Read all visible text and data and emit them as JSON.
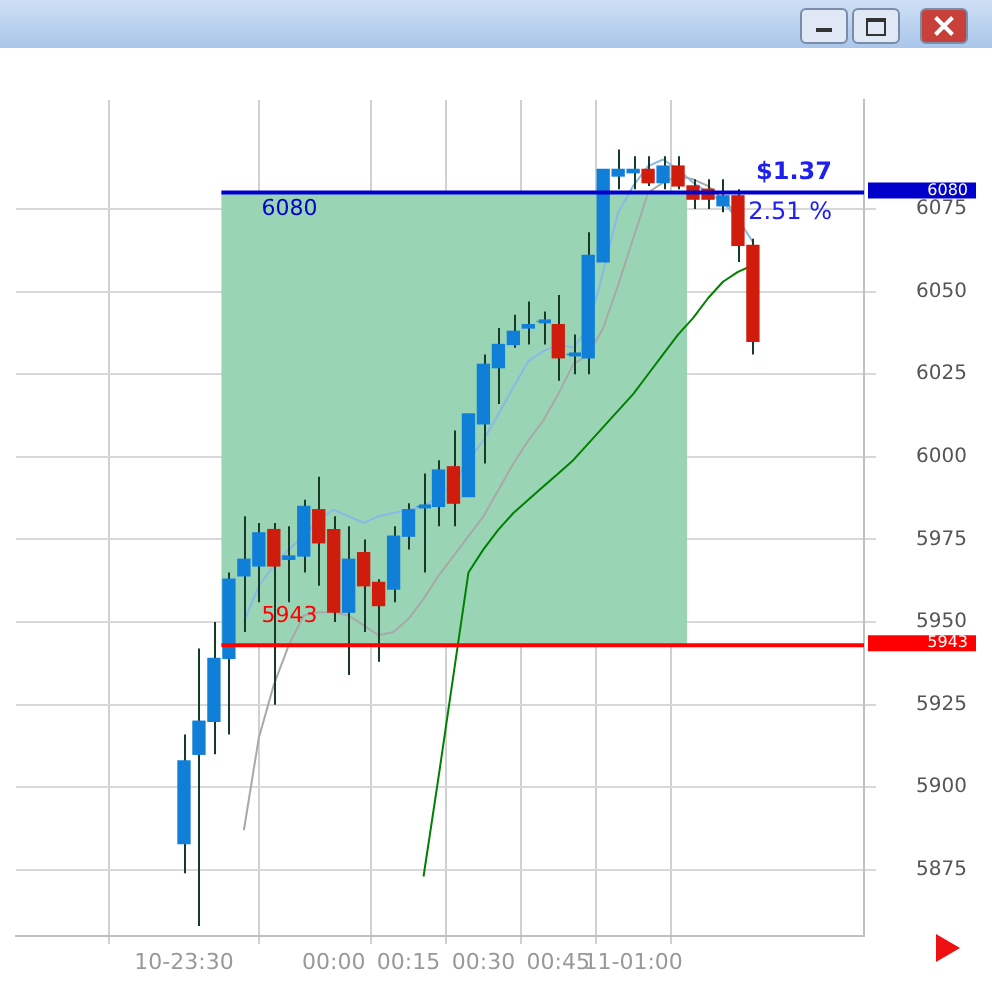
{
  "chart_data": {
    "type": "candlestick",
    "categories": [
      "10-23:30",
      null,
      null,
      null,
      null,
      null,
      null,
      null,
      null,
      null,
      "00:00",
      null,
      null,
      null,
      null,
      "00:15",
      null,
      null,
      null,
      null,
      "00:30",
      null,
      null,
      null,
      null,
      "00:45",
      null,
      null,
      null,
      null,
      "11-01:00",
      null,
      null,
      null,
      null,
      null,
      null,
      null,
      null
    ],
    "ohlc": [
      [
        5883,
        5916,
        5874,
        5908
      ],
      [
        5910,
        5942,
        5858,
        5920
      ],
      [
        5920,
        5950,
        5910,
        5939
      ],
      [
        5939,
        5965,
        5916,
        5963
      ],
      [
        5964,
        5982,
        5947,
        5969
      ],
      [
        5967,
        5980,
        5956,
        5977
      ],
      [
        5978,
        5980,
        5925,
        5967
      ],
      [
        5969,
        5979,
        5956,
        5970
      ],
      [
        5970,
        5987,
        5965,
        5985
      ],
      [
        5984,
        5994,
        5961,
        5974
      ],
      [
        5978,
        5982,
        5950,
        5953
      ],
      [
        5953,
        5979,
        5934,
        5969
      ],
      [
        5971,
        5975,
        5947,
        5961
      ],
      [
        5962,
        5963,
        5938,
        5955
      ],
      [
        5960,
        5979,
        5956,
        5976
      ],
      [
        5976,
        5986,
        5972,
        5984
      ],
      [
        5985,
        5995,
        5965,
        5985
      ],
      [
        5985,
        5999,
        5979,
        5996
      ],
      [
        5997,
        6008,
        5979,
        5986
      ],
      [
        5988,
        6013,
        5988,
        6013
      ],
      [
        6010,
        6031,
        5998,
        6028
      ],
      [
        6027,
        6039,
        6016,
        6034
      ],
      [
        6034,
        6043,
        6033,
        6038
      ],
      [
        6039,
        6047,
        6034,
        6040
      ],
      [
        6041,
        6044,
        6034,
        6041
      ],
      [
        6040,
        6049,
        6023,
        6030
      ],
      [
        6031,
        6037,
        6025,
        6031
      ],
      [
        6030,
        6068,
        6025,
        6061
      ],
      [
        6059,
        6087,
        6059,
        6087
      ],
      [
        6085,
        6093,
        6081,
        6087
      ],
      [
        6086,
        6091,
        6081,
        6087
      ],
      [
        6087,
        6091,
        6082,
        6083
      ],
      [
        6083,
        6091,
        6081,
        6088
      ],
      [
        6088,
        6091,
        6081,
        6082
      ],
      [
        6082,
        6084,
        6075,
        6078
      ],
      [
        6081,
        6084,
        6075,
        6078
      ],
      [
        6076,
        6084,
        6074,
        6079
      ],
      [
        6079,
        6081,
        6059,
        6064
      ],
      [
        6064,
        6066,
        6031,
        6035
      ]
    ],
    "series": [
      {
        "type": "line",
        "color": "#8ab8e6",
        "values": [
          null,
          null,
          null,
          null,
          5950,
          5961,
          5967,
          5972,
          5976,
          5981,
          5984,
          5982,
          5980,
          5982,
          5983,
          5984,
          5985,
          5988,
          5992,
          5999,
          6005,
          6013,
          6021,
          6029,
          6032,
          6034,
          6033,
          6039,
          6056,
          6074,
          6082,
          6088,
          6090,
          6087,
          6083,
          6080,
          6077,
          6072,
          6065
        ]
      },
      {
        "type": "line",
        "color": "#a8a8a8",
        "values": [
          null,
          null,
          null,
          null,
          5887,
          5915,
          5931,
          5943,
          5952,
          5953,
          5953,
          5952,
          5949,
          5946,
          5947,
          5951,
          5957,
          5964,
          5970,
          5976,
          5982,
          5990,
          5998,
          6005,
          6011,
          6019,
          6028,
          6031,
          6039,
          6052,
          6066,
          6080,
          6083,
          6085,
          6084,
          6082,
          6078,
          6073,
          null
        ]
      },
      {
        "type": "line",
        "color": "#008000",
        "values": [
          null,
          null,
          null,
          null,
          null,
          null,
          null,
          null,
          null,
          null,
          null,
          null,
          null,
          null,
          null,
          null,
          5873,
          5903,
          5934,
          5965,
          5972,
          5978,
          5983,
          5987,
          5991,
          5995,
          5999,
          6004,
          6009,
          6014,
          6019,
          6025,
          6031,
          6037,
          6042,
          6048,
          6053,
          6056,
          6058
        ]
      }
    ],
    "ylim": [
      5855,
      6108
    ],
    "yticks": [
      5875,
      5900,
      5925,
      5950,
      5975,
      6000,
      6025,
      6050,
      6075
    ],
    "ref_lines": [
      {
        "axis": "y",
        "value": 6080,
        "label": "6080",
        "color": "#0000cc"
      },
      {
        "axis": "y",
        "value": 5943,
        "label": "5943",
        "color": "#ff0000"
      }
    ],
    "bands": [
      {
        "axis": "y",
        "from": 5943,
        "to": 6080,
        "color": "#99d5b4"
      }
    ],
    "annotations": [
      "$1.37",
      "2.51 %"
    ],
    "grid": true,
    "legend": false
  }
}
